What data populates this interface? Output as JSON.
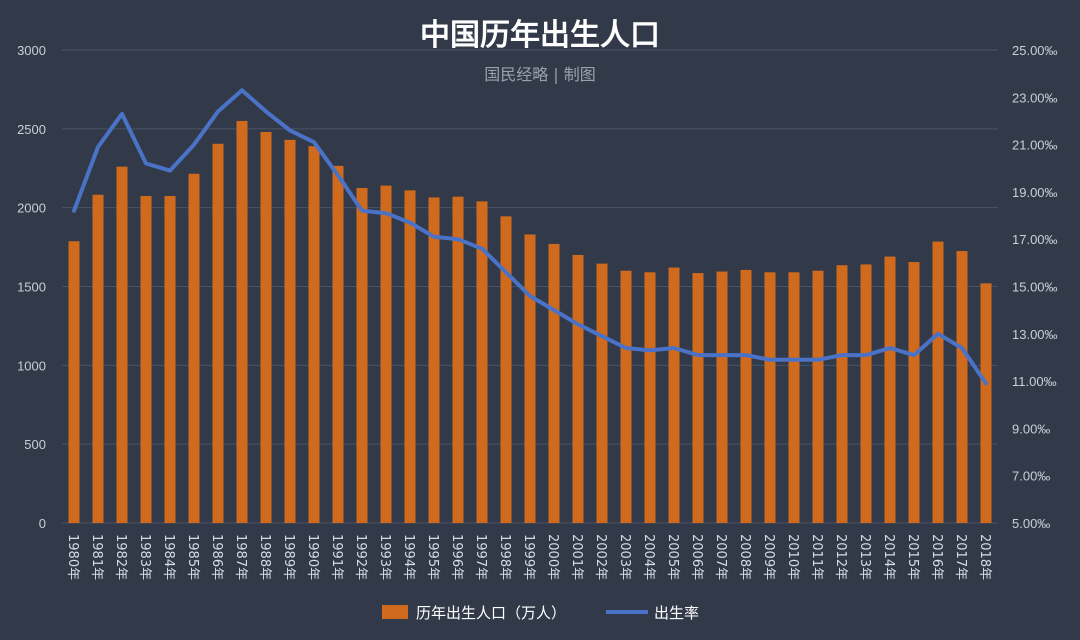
{
  "chart_data": {
    "type": "bar+line",
    "title": "中国历年出生人口",
    "subtitle": "国民经略 | 制图",
    "categories": [
      "1980年",
      "1981年",
      "1982年",
      "1983年",
      "1984年",
      "1985年",
      "1986年",
      "1987年",
      "1988年",
      "1989年",
      "1990年",
      "1991年",
      "1992年",
      "1993年",
      "1994年",
      "1995年",
      "1996年",
      "1997年",
      "1998年",
      "1999年",
      "2000年",
      "2001年",
      "2002年",
      "2003年",
      "2004年",
      "2005年",
      "2006年",
      "2007年",
      "2008年",
      "2009年",
      "2010年",
      "2011年",
      "2012年",
      "2013年",
      "2014年",
      "2015年",
      "2016年",
      "2017年",
      "2018年"
    ],
    "series": [
      {
        "name": "历年出生人口（万人）",
        "type": "bar",
        "axis": "left",
        "color": "#d06a1c",
        "values": [
          1787,
          2082,
          2260,
          2074,
          2074,
          2215,
          2405,
          2550,
          2480,
          2430,
          2390,
          2265,
          2125,
          2140,
          2110,
          2065,
          2070,
          2040,
          1945,
          1830,
          1770,
          1700,
          1645,
          1600,
          1590,
          1620,
          1585,
          1595,
          1605,
          1590,
          1590,
          1600,
          1635,
          1640,
          1690,
          1655,
          1785,
          1725,
          1520
        ]
      },
      {
        "name": "出生率",
        "type": "line",
        "axis": "right",
        "color": "#4a73c8",
        "values": [
          18.2,
          20.9,
          22.3,
          20.2,
          19.9,
          21.0,
          22.4,
          23.3,
          22.4,
          21.6,
          21.1,
          19.7,
          18.2,
          18.1,
          17.7,
          17.1,
          17.0,
          16.6,
          15.6,
          14.6,
          14.0,
          13.4,
          12.9,
          12.4,
          12.3,
          12.4,
          12.1,
          12.1,
          12.1,
          11.9,
          11.9,
          11.9,
          12.1,
          12.1,
          12.4,
          12.1,
          13.0,
          12.4,
          10.9
        ]
      }
    ],
    "y_left": {
      "ticks": [
        "0",
        "500",
        "1000",
        "1500",
        "2000",
        "2500",
        "3000"
      ],
      "ylim": [
        0,
        3000
      ]
    },
    "y_right": {
      "ticks": [
        "5.00‰",
        "7.00‰",
        "9.00‰",
        "11.00‰",
        "13.00‰",
        "15.00‰",
        "17.00‰",
        "19.00‰",
        "21.00‰",
        "23.00‰",
        "25.00‰"
      ],
      "ylim": [
        5,
        25
      ]
    },
    "grid": true,
    "legend_position": "bottom"
  }
}
